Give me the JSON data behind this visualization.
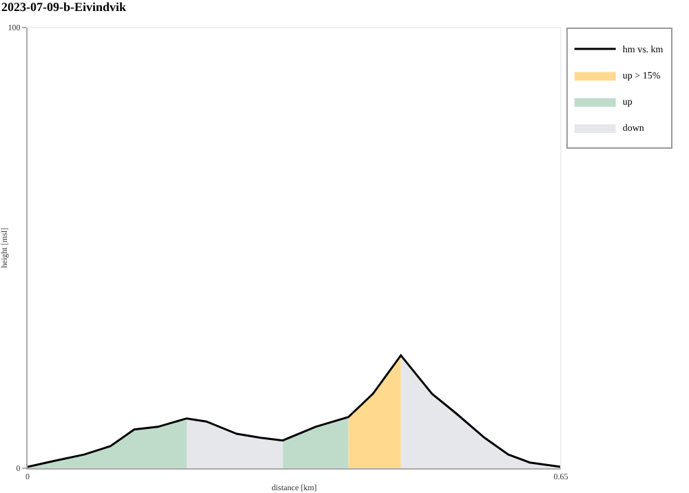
{
  "chart_data": {
    "type": "area",
    "title": "2023-07-09-b-Eivindvik",
    "xlabel": "distance [km]",
    "ylabel": "height [msl]",
    "xlim": [
      0,
      0.65
    ],
    "xticks": [
      0,
      0.65
    ],
    "ylim": [
      0,
      100
    ],
    "yticks": [
      0,
      100
    ],
    "legend": "top right",
    "marker": "none",
    "series": [
      {
        "name": "hm vs. km",
        "type": "line",
        "color": "#000000",
        "x": [
          0,
          0.031,
          0.069,
          0.101,
          0.13,
          0.159,
          0.194,
          0.218,
          0.255,
          0.284,
          0.311,
          0.351,
          0.391,
          0.421,
          0.455,
          0.493,
          0.522,
          0.557,
          0.586,
          0.612,
          0.65
        ],
        "values": [
          0.3,
          1.6,
          3.1,
          5,
          8.8,
          9.4,
          11.3,
          10.6,
          7.8,
          6.9,
          6.3,
          9.4,
          11.6,
          16.9,
          25.6,
          16.9,
          12.5,
          6.9,
          3.1,
          1.3,
          0.3
        ]
      },
      {
        "name": "up > 15%",
        "color": "#fed98e",
        "x": [
          0.391,
          0.421,
          0.455
        ],
        "values": [
          11.6,
          16.9,
          25.6
        ]
      },
      {
        "name": "up",
        "color": "#bfdccb",
        "x": [
          0,
          0.031,
          0.069,
          0.101,
          0.13,
          0.159,
          0.194
        ],
        "values": [
          0.3,
          1.6,
          3.1,
          5,
          8.8,
          9.4,
          11.3
        ]
      },
      {
        "name": "down",
        "color": "#e6e7ea",
        "x": [
          0.194,
          0.218,
          0.255,
          0.284,
          0.311
        ],
        "values": [
          11.3,
          10.6,
          7.8,
          6.9,
          6.3
        ]
      },
      {
        "color": "#bfdccb",
        "x": [
          0.311,
          0.351,
          0.391
        ],
        "values": [
          6.3,
          9.4,
          11.6
        ]
      },
      {
        "color": "#e6e7ea",
        "x": [
          0.455,
          0.493,
          0.522,
          0.557,
          0.586,
          0.612,
          0.65
        ],
        "values": [
          25.6,
          16.9,
          12.5,
          6.9,
          3.1,
          1.3,
          0.3
        ]
      }
    ]
  }
}
